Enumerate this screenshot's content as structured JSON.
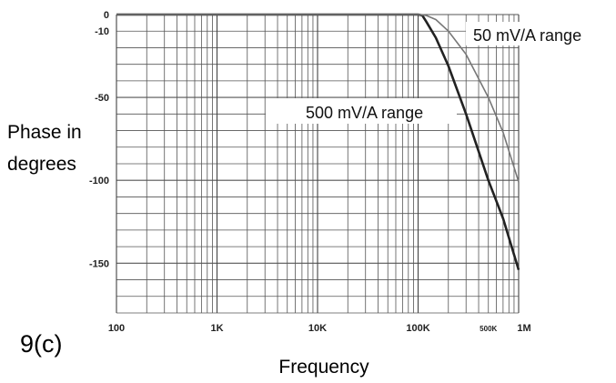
{
  "chart_data": {
    "type": "line",
    "figure_label": "9(c)",
    "xlabel": "Frequency",
    "ylabel_lines": [
      "Phase in",
      "degrees"
    ],
    "x_scale": "log",
    "xlim": [
      100,
      1000000
    ],
    "ylim": [
      -180,
      0
    ],
    "grid": true,
    "x_ticks": [
      {
        "value": 100,
        "label": "100"
      },
      {
        "value": 1000,
        "label": "1K"
      },
      {
        "value": 10000,
        "label": "10K"
      },
      {
        "value": 100000,
        "label": "100K"
      },
      {
        "value": 500000,
        "label": "500K",
        "small": true
      },
      {
        "value": 1000000,
        "label": "1M"
      }
    ],
    "y_ticks": [
      {
        "value": 0,
        "label": "0"
      },
      {
        "value": -10,
        "label": "-10"
      },
      {
        "value": -50,
        "label": "-50"
      },
      {
        "value": -100,
        "label": "-100"
      },
      {
        "value": -150,
        "label": "-150"
      }
    ],
    "series": [
      {
        "name": "500 mV/A range",
        "color": "#222222",
        "x": [
          100,
          1000,
          10000,
          100000,
          110000,
          120000,
          150000,
          200000,
          300000,
          500000,
          700000,
          1000000
        ],
        "y": [
          0,
          0,
          0,
          0,
          -0.5,
          -4,
          -14,
          -31,
          -60,
          -100,
          -123,
          -154
        ]
      },
      {
        "name": "50 mV/A range",
        "color": "#777777",
        "x": [
          100,
          1000,
          10000,
          100000,
          120000,
          150000,
          200000,
          300000,
          500000,
          700000,
          1000000
        ],
        "y": [
          0,
          0,
          0,
          0,
          -0.5,
          -3,
          -10,
          -24,
          -50,
          -71,
          -101
        ]
      }
    ],
    "annotations": [
      {
        "text": "50 mV/A range",
        "series": "50 mV/A range"
      },
      {
        "text": "500 mV/A range",
        "series": "500 mV/A range"
      }
    ]
  }
}
